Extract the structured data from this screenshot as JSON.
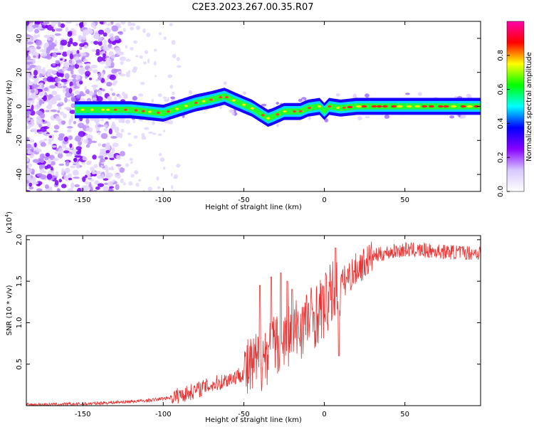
{
  "title": "C2E3.2023.267.00.35.R07",
  "chart_data": [
    {
      "type": "heatmap",
      "panel": "spectrogram",
      "xlabel": "Height of straight line (km)",
      "ylabel": "Frequency (Hz)",
      "xlim": [
        -185,
        97
      ],
      "ylim": [
        -50,
        50
      ],
      "xticks": [
        -150,
        -100,
        -50,
        0,
        50
      ],
      "yticks": [
        -40,
        -20,
        0,
        20,
        40
      ],
      "colorbar": {
        "label": "Normalized spectral amplitude",
        "range": [
          0.0,
          1.0
        ],
        "ticks": [
          0.0,
          0.2,
          0.4,
          0.6,
          0.8
        ],
        "colors": [
          "#ffffff",
          "#d8c8ff",
          "#8800ff",
          "#0000ff",
          "#00ffff",
          "#00ff00",
          "#ffff00",
          "#ff0000",
          "#ff00aa"
        ]
      },
      "ridge": {
        "x": [
          -155,
          -140,
          -120,
          -100,
          -90,
          -80,
          -70,
          -62,
          -55,
          -45,
          -35,
          -32,
          -25,
          -15,
          -10,
          -3,
          0,
          3,
          10,
          20,
          40,
          60,
          80,
          97
        ],
        "y": [
          -2,
          -2,
          -2,
          -4,
          -1,
          2,
          4,
          6,
          3,
          -1,
          -7,
          -6,
          -3,
          -3,
          -1,
          0,
          -3,
          0,
          -1,
          0,
          0,
          0,
          0,
          0
        ]
      }
    },
    {
      "type": "line",
      "panel": "snr",
      "xlabel": "Height of straight line (km)",
      "ylabel": "SNR (10 * v/v)",
      "y_multiplier": "(x10",
      "y_multiplier_exp": "4",
      "y_multiplier_close": ")",
      "xlim": [
        -185,
        97
      ],
      "ylim": [
        0,
        2.05
      ],
      "xticks": [
        -150,
        -100,
        -50,
        0,
        50
      ],
      "yticks": [
        0.5,
        1.0,
        1.5,
        2.0
      ],
      "ytick_labels": [
        "0.5",
        "1.0",
        "1.5",
        "2.0"
      ],
      "color": "#e83030",
      "envelope": {
        "x": [
          -185,
          -150,
          -130,
          -110,
          -95,
          -85,
          -75,
          -65,
          -55,
          -45,
          -40,
          -35,
          -30,
          -25,
          -20,
          -15,
          -10,
          -5,
          0,
          5,
          10,
          15,
          20,
          25,
          30,
          40,
          50,
          60,
          70,
          80,
          97
        ],
        "y": [
          0.01,
          0.02,
          0.04,
          0.06,
          0.1,
          0.15,
          0.22,
          0.28,
          0.35,
          0.45,
          0.55,
          0.65,
          0.72,
          0.8,
          0.88,
          0.95,
          1.05,
          1.1,
          1.2,
          1.35,
          1.45,
          1.55,
          1.65,
          1.72,
          1.8,
          1.85,
          1.88,
          1.87,
          1.86,
          1.85,
          1.84
        ]
      },
      "spikes": [
        {
          "x": -40,
          "y": 1.45
        },
        {
          "x": -33,
          "y": 1.55
        },
        {
          "x": -27,
          "y": 1.6
        },
        {
          "x": -23,
          "y": 1.5
        },
        {
          "x": -20,
          "y": 1.4
        },
        {
          "x": 7,
          "y": 1.9
        },
        {
          "x": 9,
          "y": 0.6
        }
      ]
    }
  ]
}
